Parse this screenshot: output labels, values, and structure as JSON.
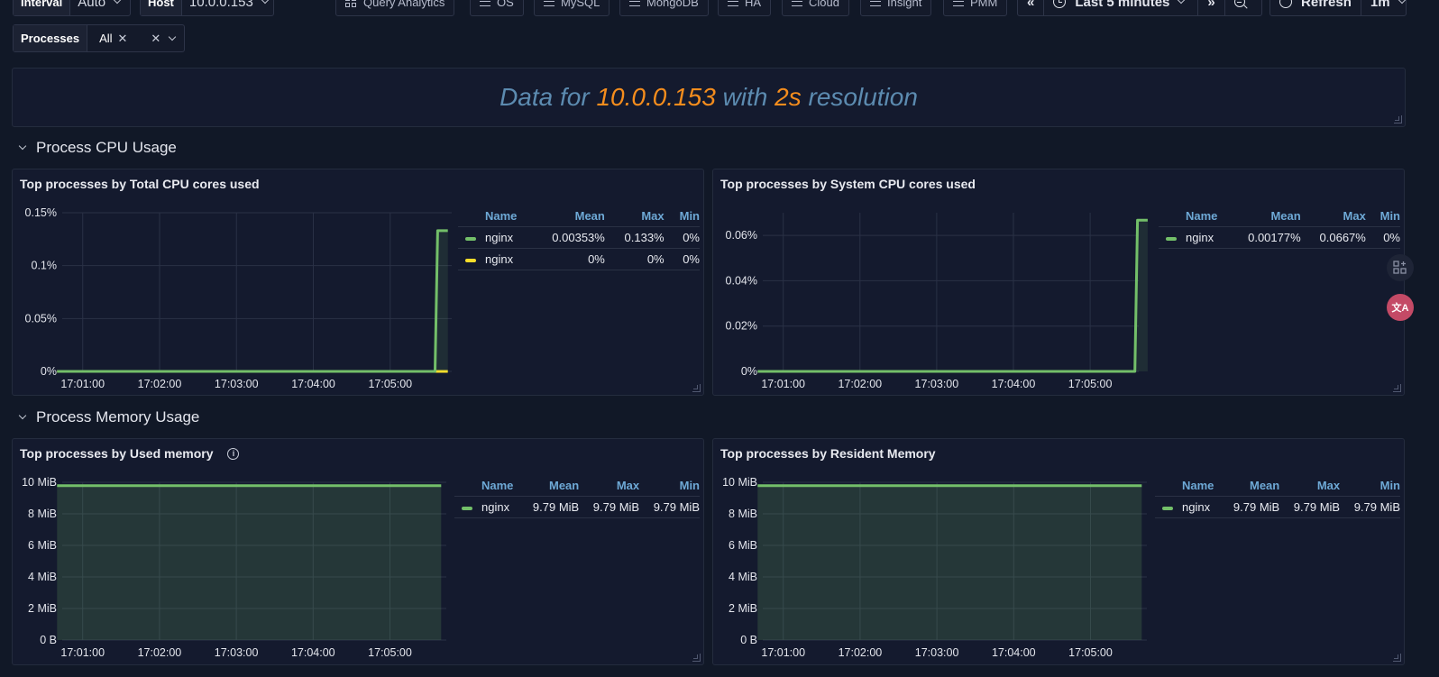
{
  "toolbar": {
    "interval_label": "Interval",
    "interval_value": "Auto",
    "host_label": "Host",
    "host_value": "10.0.0.153",
    "nav": [
      {
        "name": "nav-query-analytics",
        "label": "Query Analytics",
        "icon": "grid-icon"
      },
      {
        "name": "nav-os",
        "label": "OS",
        "icon": "menu-icon"
      },
      {
        "name": "nav-mysql",
        "label": "MySQL",
        "icon": "menu-icon"
      },
      {
        "name": "nav-mongodb",
        "label": "MongoDB",
        "icon": "menu-icon"
      },
      {
        "name": "nav-ha",
        "label": "HA",
        "icon": "menu-icon"
      },
      {
        "name": "nav-cloud",
        "label": "Cloud",
        "icon": "menu-icon"
      },
      {
        "name": "nav-insight",
        "label": "Insight",
        "icon": "menu-icon"
      },
      {
        "name": "nav-pmm",
        "label": "PMM",
        "icon": "menu-icon"
      }
    ],
    "time_range": "Last 5 minutes",
    "refresh_label": "Refresh",
    "refresh_interval": "1m",
    "shift_back": "«",
    "shift_forward": "»"
  },
  "processes": {
    "label": "Processes",
    "selected": "All"
  },
  "banner": {
    "part1": "Data for ",
    "host": "10.0.0.153",
    "part2": " with ",
    "resolution": "2s",
    "part3": " resolution"
  },
  "rows": {
    "cpu": "Process CPU Usage",
    "memory": "Process Memory Usage"
  },
  "legend_headers": {
    "name": "Name",
    "mean": "Mean",
    "max": "Max",
    "min": "Min"
  },
  "colors": {
    "green": "#73bf69",
    "yellow": "#fade2a",
    "bg": "#141a2e",
    "accent_orange": "#f58d1d",
    "accent_blue": "#5c8bb0"
  },
  "panels": [
    {
      "id": "p1",
      "title": "Top processes by Total CPU cores used",
      "legend": [
        {
          "name": "nginx",
          "color": "#73bf69",
          "mean": "0.00353%",
          "max": "0.133%",
          "min": "0%"
        },
        {
          "name": "nginx",
          "color": "#fade2a",
          "mean": "0%",
          "max": "0%",
          "min": "0%"
        }
      ]
    },
    {
      "id": "p2",
      "title": "Top processes by System CPU cores used",
      "legend": [
        {
          "name": "nginx",
          "color": "#73bf69",
          "mean": "0.00177%",
          "max": "0.0667%",
          "min": "0%"
        }
      ]
    },
    {
      "id": "p3",
      "title": "Top processes by Used memory",
      "has_info": true,
      "legend": [
        {
          "name": "nginx",
          "color": "#73bf69",
          "mean": "9.79 MiB",
          "max": "9.79 MiB",
          "min": "9.79 MiB"
        }
      ]
    },
    {
      "id": "p4",
      "title": "Top processes by Resident Memory",
      "legend": [
        {
          "name": "nginx",
          "color": "#73bf69",
          "mean": "9.79 MiB",
          "max": "9.79 MiB",
          "min": "9.79 MiB"
        }
      ]
    }
  ],
  "chart_data": [
    {
      "type": "line",
      "title": "Top processes by Total CPU cores used",
      "x_ticks": [
        "17:01:00",
        "17:02:00",
        "17:03:00",
        "17:04:00",
        "17:05:00"
      ],
      "y_ticks": [
        "0%",
        "0.05%",
        "0.1%",
        "0.15%"
      ],
      "ylim": [
        0,
        0.15
      ],
      "series": [
        {
          "name": "nginx",
          "color": "#73bf69",
          "points": [
            [
              "17:00:40",
              0
            ],
            [
              "17:05:35",
              0
            ],
            [
              "17:05:37",
              0.133
            ],
            [
              "17:05:45",
              0.133
            ]
          ]
        },
        {
          "name": "nginx",
          "color": "#fade2a",
          "points": [
            [
              "17:00:40",
              0
            ],
            [
              "17:05:45",
              0
            ]
          ]
        }
      ]
    },
    {
      "type": "line",
      "title": "Top processes by System CPU cores used",
      "x_ticks": [
        "17:01:00",
        "17:02:00",
        "17:03:00",
        "17:04:00",
        "17:05:00"
      ],
      "y_ticks": [
        "0%",
        "0.02%",
        "0.04%",
        "0.06%"
      ],
      "ylim": [
        0,
        0.07
      ],
      "series": [
        {
          "name": "nginx",
          "color": "#73bf69",
          "points": [
            [
              "17:00:40",
              0
            ],
            [
              "17:05:35",
              0
            ],
            [
              "17:05:37",
              0.0667
            ],
            [
              "17:05:45",
              0.0667
            ]
          ]
        }
      ]
    },
    {
      "type": "area",
      "title": "Top processes by Used memory",
      "x_ticks": [
        "17:01:00",
        "17:02:00",
        "17:03:00",
        "17:04:00",
        "17:05:00"
      ],
      "y_ticks": [
        "0 B",
        "2 MiB",
        "4 MiB",
        "6 MiB",
        "8 MiB",
        "10 MiB"
      ],
      "ylim": [
        0,
        10
      ],
      "series": [
        {
          "name": "nginx",
          "color": "#73bf69",
          "points": [
            [
              "17:00:40",
              9.79
            ],
            [
              "17:05:40",
              9.79
            ]
          ]
        }
      ]
    },
    {
      "type": "area",
      "title": "Top processes by Resident Memory",
      "x_ticks": [
        "17:01:00",
        "17:02:00",
        "17:03:00",
        "17:04:00",
        "17:05:00"
      ],
      "y_ticks": [
        "0 B",
        "2 MiB",
        "4 MiB",
        "6 MiB",
        "8 MiB",
        "10 MiB"
      ],
      "ylim": [
        0,
        10
      ],
      "series": [
        {
          "name": "nginx",
          "color": "#73bf69",
          "points": [
            [
              "17:00:40",
              9.79
            ],
            [
              "17:05:40",
              9.79
            ]
          ]
        }
      ]
    }
  ]
}
